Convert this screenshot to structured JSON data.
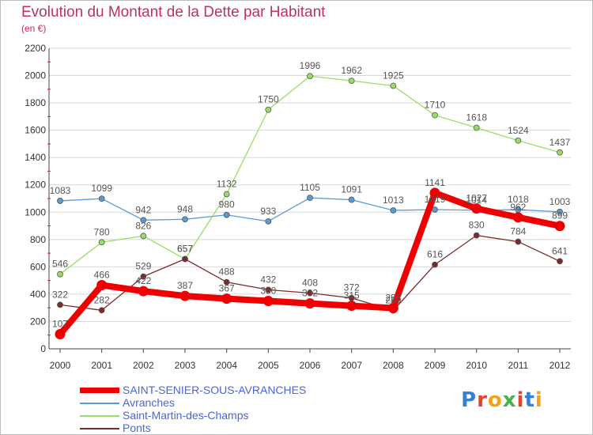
{
  "header": {
    "title": "Evolution du Montant de la Dette par Habitant",
    "unit": "(en €)"
  },
  "logo": {
    "text": "Proxiti"
  },
  "colors": {
    "background": "#ffffff",
    "grid": "#d8d8d8",
    "axis": "#444444",
    "title": "#c0315e",
    "legend_text": "#4a66d8"
  },
  "chart_data": {
    "type": "line",
    "title": "Evolution du Montant de la Dette par Habitant",
    "subtitle": "(en €)",
    "xlabel": "",
    "ylabel": "",
    "x": [
      "2000",
      "2001",
      "2002",
      "2003",
      "2004",
      "2005",
      "2006",
      "2007",
      "2008",
      "2009",
      "2010",
      "2011",
      "2012"
    ],
    "ylim": [
      0,
      2200
    ],
    "yticks": [
      0,
      200,
      400,
      600,
      800,
      1000,
      1200,
      1400,
      1600,
      1800,
      2000,
      2200
    ],
    "grid": true,
    "legend_position": "bottom-left",
    "series": [
      {
        "name": "SAINT-SENIER-SOUS-AVRANCHES",
        "color": "#ee0000",
        "values": [
          107,
          466,
          422,
          387,
          367,
          350,
          332,
          315,
          298,
          1141,
          1027,
          962,
          899
        ],
        "labels": [
          "107",
          "466",
          "422",
          "387",
          "367",
          "350",
          "332",
          "315",
          "298",
          "1141",
          "1027",
          "962",
          "899"
        ]
      },
      {
        "name": "Avranches",
        "color": "#5b9bd5",
        "values": [
          1083,
          1099,
          942,
          948,
          980,
          933,
          1105,
          1091,
          1013,
          1019,
          1014,
          1018,
          1003
        ],
        "labels": [
          "1083",
          "1099",
          "942",
          "948",
          "980",
          "933",
          "1105",
          "1091",
          "1013",
          "1019",
          "1014",
          "1018",
          "1003"
        ]
      },
      {
        "name": "Saint-Martin-des-Champs",
        "color": "#99dd66",
        "values": [
          546,
          780,
          826,
          657,
          1132,
          1750,
          1996,
          1962,
          1925,
          1710,
          1618,
          1524,
          1437
        ],
        "labels": [
          "546",
          "780",
          "826",
          "657",
          "1132",
          "1750",
          "1996",
          "1962",
          "1925",
          "1710",
          "1618",
          "1524",
          "1437"
        ]
      },
      {
        "name": "Ponts",
        "color": "#7a2a2a",
        "values": [
          322,
          282,
          529,
          657,
          488,
          432,
          408,
          372,
          280,
          616,
          830,
          784,
          641
        ],
        "labels": [
          "322",
          "282",
          "529",
          "657",
          "488",
          "432",
          "408",
          "372",
          "280",
          "616",
          "830",
          "784",
          "641"
        ]
      }
    ]
  }
}
